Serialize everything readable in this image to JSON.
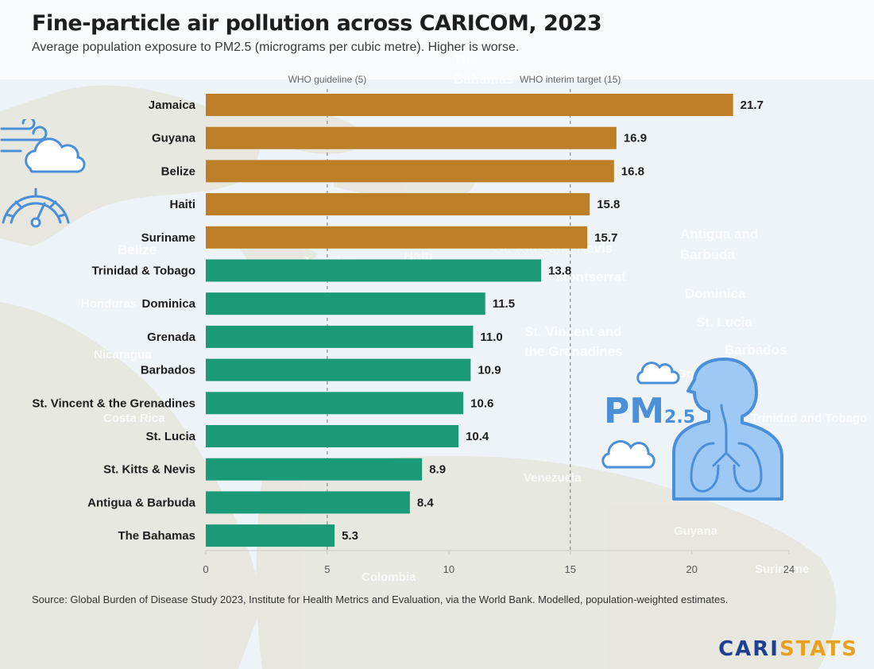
{
  "title": "Fine-particle air pollution across CARICOM, 2023",
  "subtitle": "Average population exposure to PM2.5 (micrograms per cubic metre). Higher is worse.",
  "source": "Source: Global Burden of Disease Study 2023, Institute for Health Metrics and Evaluation, via the World Bank. Modelled, population-weighted estimates.",
  "logo": {
    "part1": "CARI",
    "part2": "STATS"
  },
  "pm_badge": {
    "main": "PM",
    "sub": "2.5"
  },
  "colors": {
    "above_target": "#bc7f28",
    "below_target": "#1b9a78",
    "reference_line": "#888888"
  },
  "background_map_labels": [
    "The",
    "Bahamas",
    "Antigua and",
    "Barbuda",
    "St. Kitts and Nevis",
    "Montserrat",
    "Dominica",
    "St. Lucia",
    "Barbados",
    "St. Vincent and",
    "the Grenadines",
    "Belize",
    "Jamaica",
    "Haiti",
    "Honduras",
    "Nicaragua",
    "Costa Rica",
    "Venezuela",
    "Guyana",
    "Suriname",
    "Colombia",
    "Grenada",
    "Trinidad and Tobago"
  ],
  "icons": [
    "wind-cloud-icon",
    "gauge-icon",
    "cloud-icon",
    "pm25-lungs-icon"
  ],
  "chart_data": {
    "type": "bar",
    "orientation": "horizontal",
    "categories": [
      "Jamaica",
      "Guyana",
      "Belize",
      "Haiti",
      "Suriname",
      "Trinidad & Tobago",
      "Dominica",
      "Grenada",
      "Barbados",
      "St. Vincent & the Grenadines",
      "St. Lucia",
      "St. Kitts & Nevis",
      "Antigua & Barbuda",
      "The Bahamas"
    ],
    "values": [
      21.7,
      16.9,
      16.8,
      15.8,
      15.7,
      13.8,
      11.5,
      11.0,
      10.9,
      10.6,
      10.4,
      8.9,
      8.4,
      5.3
    ],
    "value_labels": [
      "21.7",
      "16.9",
      "16.8",
      "15.8",
      "15.7",
      "13.8",
      "11.5",
      "11.0",
      "10.9",
      "10.6",
      "10.4",
      "8.9",
      "8.4",
      "5.3"
    ],
    "xlim": [
      0,
      24
    ],
    "xticks": [
      0,
      5,
      10,
      15,
      20,
      24
    ],
    "reference_lines": [
      {
        "label": "WHO guideline (5)",
        "value": 5
      },
      {
        "label": "WHO interim target (15)",
        "value": 15
      }
    ],
    "color_threshold": 15,
    "legend": "none"
  }
}
